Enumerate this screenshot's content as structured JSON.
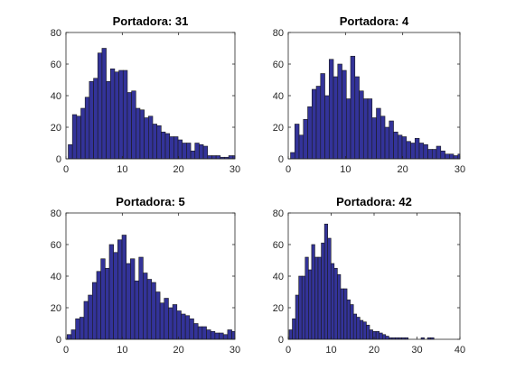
{
  "figure": {
    "bar_fill": "#333399",
    "bar_edge": "#1a1a1a",
    "axis_color": "#262626"
  },
  "chart_data": [
    {
      "type": "bar",
      "title": "Portadora: 31",
      "xlim": [
        0,
        30
      ],
      "ylim": [
        0,
        80
      ],
      "xticks": [
        0,
        10,
        20,
        30
      ],
      "yticks": [
        0,
        20,
        40,
        60,
        80
      ],
      "bin_width": 0.75,
      "x_start": 0.4,
      "values": [
        9,
        28,
        27,
        32,
        39,
        49,
        51,
        67,
        70,
        49,
        57,
        55,
        56,
        56,
        42,
        43,
        32,
        31,
        26,
        27,
        22,
        21,
        17,
        16,
        14,
        14,
        12,
        10,
        10,
        5,
        10,
        9,
        8,
        2,
        2,
        2,
        1,
        1,
        2,
        2,
        2,
        0,
        0,
        0,
        0,
        0,
        0,
        1,
        1
      ],
      "xlabel": "",
      "ylabel": "",
      "grid": false
    },
    {
      "type": "bar",
      "title": "Portadora: 4",
      "xlim": [
        0,
        30
      ],
      "ylim": [
        0,
        80
      ],
      "xticks": [
        0,
        10,
        20,
        30
      ],
      "yticks": [
        0,
        20,
        40,
        60,
        80
      ],
      "bin_width": 0.75,
      "x_start": 0.4,
      "values": [
        4,
        22,
        15,
        25,
        33,
        44,
        46,
        54,
        40,
        63,
        52,
        60,
        56,
        38,
        65,
        52,
        43,
        38,
        38,
        26,
        32,
        27,
        20,
        24,
        17,
        15,
        14,
        11,
        10,
        13,
        10,
        9,
        6,
        6,
        8,
        5,
        3,
        3,
        2,
        3,
        2,
        1,
        2,
        0,
        0,
        0,
        0,
        0,
        0,
        0,
        0,
        0,
        0,
        0,
        0,
        0,
        0,
        0,
        0,
        0,
        0,
        0,
        0,
        0,
        0,
        0,
        0,
        0,
        0,
        0,
        0,
        0,
        0,
        0,
        0,
        0,
        0,
        0,
        0,
        0,
        0,
        0,
        0,
        0,
        0,
        0,
        0,
        0
      ],
      "xlabel": "",
      "ylabel": "",
      "grid": false
    },
    {
      "type": "bar",
      "title": "Portadora: 5",
      "xlim": [
        0,
        30
      ],
      "ylim": [
        0,
        80
      ],
      "xticks": [
        0,
        10,
        20,
        30
      ],
      "yticks": [
        0,
        20,
        40,
        60,
        80
      ],
      "bin_width": 0.75,
      "x_start": 0.2,
      "values": [
        3,
        6,
        13,
        14,
        24,
        28,
        36,
        43,
        51,
        45,
        60,
        55,
        63,
        66,
        48,
        51,
        37,
        52,
        42,
        38,
        36,
        30,
        23,
        26,
        20,
        22,
        18,
        16,
        15,
        13,
        10,
        8,
        8,
        6,
        5,
        4,
        4,
        3,
        6,
        5,
        4,
        4,
        3,
        2,
        2,
        1,
        1
      ],
      "xlabel": "",
      "ylabel": "",
      "grid": false
    },
    {
      "type": "bar",
      "title": "Portadora: 42",
      "xlim": [
        0,
        40
      ],
      "ylim": [
        0,
        80
      ],
      "xticks": [
        0,
        10,
        20,
        30,
        40
      ],
      "yticks": [
        0,
        20,
        40,
        60,
        80
      ],
      "bin_width": 0.75,
      "x_start": 0.2,
      "values": [
        6,
        13,
        28,
        40,
        40,
        52,
        44,
        60,
        52,
        52,
        61,
        73,
        64,
        48,
        45,
        41,
        32,
        32,
        25,
        22,
        16,
        14,
        12,
        11,
        9,
        6,
        5,
        5,
        4,
        3,
        2,
        1,
        1,
        1,
        1,
        1,
        1,
        0,
        0,
        0,
        0,
        1,
        0,
        1,
        1
      ],
      "xlabel": "",
      "ylabel": "",
      "grid": false
    }
  ]
}
